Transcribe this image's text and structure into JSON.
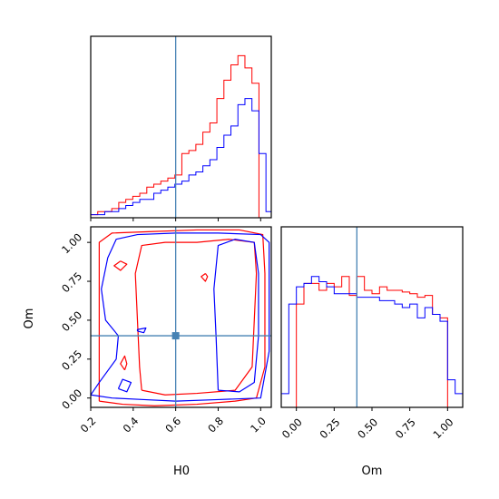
{
  "chart_data": [
    {
      "type": "histogram",
      "panel": "H0 marginal",
      "xlim": [
        0.2,
        1.05
      ],
      "truth": 0.6,
      "colors": {
        "red": "#ff0000",
        "blue": "#0000ff",
        "truth": "#4682b4"
      },
      "bin_edges": [
        0.2,
        0.233,
        0.266,
        0.299,
        0.332,
        0.365,
        0.398,
        0.431,
        0.464,
        0.497,
        0.53,
        0.563,
        0.596,
        0.629,
        0.662,
        0.695,
        0.728,
        0.761,
        0.794,
        0.827,
        0.86,
        0.893,
        0.926,
        0.959,
        0.992,
        1.025,
        1.05
      ],
      "series": [
        {
          "color": "red",
          "values": [
            1,
            2,
            2,
            3,
            5,
            6,
            7,
            8,
            10,
            11,
            12,
            13,
            14,
            21,
            22,
            24,
            28,
            31,
            39,
            45,
            50,
            53,
            49,
            44,
            0,
            0
          ]
        },
        {
          "color": "blue",
          "values": [
            1,
            1,
            2,
            2,
            3,
            4,
            5,
            6,
            6,
            8,
            9,
            10,
            11,
            12,
            14,
            15,
            17,
            19,
            23,
            27,
            30,
            37,
            39,
            35,
            21,
            2
          ]
        }
      ]
    },
    {
      "type": "contour",
      "panel": "H0 vs Om",
      "xlabel": "H0",
      "ylabel": "Om",
      "xlim": [
        0.2,
        1.05
      ],
      "ylim": [
        -0.06,
        1.1
      ],
      "xticks": [
        "0.2",
        "0.4",
        "0.6",
        "0.8",
        "1.0"
      ],
      "yticks": [
        "0.00",
        "0.25",
        "0.50",
        "0.75",
        "1.00"
      ],
      "truth": {
        "x": 0.6,
        "y": 0.4
      },
      "red_contours": [
        [
          [
            0.24,
            -0.02
          ],
          [
            0.35,
            -0.04
          ],
          [
            0.5,
            -0.05
          ],
          [
            0.7,
            -0.04
          ],
          [
            0.88,
            -0.02
          ],
          [
            0.98,
            0.0
          ],
          [
            1.02,
            0.2
          ],
          [
            1.02,
            0.5
          ],
          [
            1.02,
            0.8
          ],
          [
            1.01,
            1.05
          ],
          [
            0.9,
            1.08
          ],
          [
            0.7,
            1.08
          ],
          [
            0.5,
            1.07
          ],
          [
            0.3,
            1.06
          ],
          [
            0.24,
            1.0
          ],
          [
            0.24,
            0.7
          ],
          [
            0.24,
            0.4
          ],
          [
            0.24,
            0.1
          ],
          [
            0.24,
            -0.02
          ]
        ],
        [
          [
            0.44,
            0.05
          ],
          [
            0.55,
            0.02
          ],
          [
            0.7,
            0.03
          ],
          [
            0.88,
            0.05
          ],
          [
            0.96,
            0.2
          ],
          [
            0.97,
            0.5
          ],
          [
            0.98,
            0.8
          ],
          [
            0.97,
            1.0
          ],
          [
            0.85,
            1.02
          ],
          [
            0.7,
            1.0
          ],
          [
            0.55,
            1.0
          ],
          [
            0.44,
            0.98
          ],
          [
            0.41,
            0.8
          ],
          [
            0.42,
            0.5
          ],
          [
            0.43,
            0.2
          ],
          [
            0.44,
            0.05
          ]
        ],
        [
          [
            0.34,
            0.88
          ],
          [
            0.31,
            0.85
          ],
          [
            0.34,
            0.82
          ],
          [
            0.37,
            0.86
          ],
          [
            0.34,
            0.88
          ]
        ],
        [
          [
            0.36,
            0.18
          ],
          [
            0.34,
            0.22
          ],
          [
            0.36,
            0.27
          ],
          [
            0.37,
            0.22
          ],
          [
            0.36,
            0.18
          ]
        ],
        [
          [
            0.74,
            0.8
          ],
          [
            0.72,
            0.78
          ],
          [
            0.74,
            0.75
          ],
          [
            0.75,
            0.78
          ],
          [
            0.74,
            0.8
          ]
        ]
      ],
      "blue_contours": [
        [
          [
            0.2,
            0.02
          ],
          [
            0.3,
            0.0
          ],
          [
            0.45,
            -0.01
          ],
          [
            0.6,
            -0.02
          ],
          [
            0.8,
            -0.01
          ],
          [
            1.0,
            0.0
          ],
          [
            1.04,
            0.3
          ],
          [
            1.04,
            0.7
          ],
          [
            1.04,
            1.0
          ],
          [
            1.0,
            1.05
          ],
          [
            0.8,
            1.06
          ],
          [
            0.6,
            1.06
          ],
          [
            0.42,
            1.05
          ],
          [
            0.32,
            1.02
          ],
          [
            0.28,
            0.9
          ],
          [
            0.25,
            0.7
          ],
          [
            0.27,
            0.5
          ],
          [
            0.33,
            0.4
          ],
          [
            0.32,
            0.25
          ],
          [
            0.24,
            0.1
          ],
          [
            0.2,
            0.02
          ]
        ],
        [
          [
            0.8,
            0.05
          ],
          [
            0.9,
            0.04
          ],
          [
            0.97,
            0.1
          ],
          [
            0.99,
            0.4
          ],
          [
            0.99,
            0.8
          ],
          [
            0.97,
            1.0
          ],
          [
            0.88,
            1.02
          ],
          [
            0.8,
            0.98
          ],
          [
            0.78,
            0.7
          ],
          [
            0.79,
            0.4
          ],
          [
            0.8,
            0.05
          ]
        ],
        [
          [
            0.33,
            0.06
          ],
          [
            0.37,
            0.04
          ],
          [
            0.39,
            0.1
          ],
          [
            0.35,
            0.12
          ],
          [
            0.33,
            0.06
          ]
        ],
        [
          [
            0.42,
            0.43
          ],
          [
            0.45,
            0.42
          ],
          [
            0.46,
            0.45
          ],
          [
            0.42,
            0.44
          ],
          [
            0.42,
            0.43
          ]
        ]
      ]
    },
    {
      "type": "histogram",
      "panel": "Om marginal",
      "xlabel": "Om",
      "xlim": [
        -0.1,
        1.1
      ],
      "xticks": [
        "0.00",
        "0.25",
        "0.50",
        "0.75",
        "1.00"
      ],
      "truth": 0.4,
      "colors": {
        "red": "#ff0000",
        "blue": "#0000ff",
        "truth": "#4682b4"
      },
      "bin_edges": [
        -0.1,
        -0.05,
        0.0,
        0.05,
        0.1,
        0.15,
        0.2,
        0.25,
        0.3,
        0.35,
        0.4,
        0.45,
        0.5,
        0.55,
        0.6,
        0.65,
        0.7,
        0.75,
        0.8,
        0.85,
        0.9,
        0.95,
        1.0,
        1.05,
        1.1
      ],
      "series": [
        {
          "color": "red",
          "values": [
            0,
            0,
            60,
            72,
            72,
            68,
            72,
            70,
            76,
            65,
            76,
            68,
            66,
            70,
            68,
            68,
            67,
            66,
            64,
            65,
            54,
            52,
            0,
            0
          ]
        },
        {
          "color": "blue",
          "values": [
            8,
            60,
            70,
            72,
            76,
            73,
            70,
            66,
            66,
            66,
            64,
            64,
            64,
            62,
            62,
            60,
            58,
            60,
            52,
            58,
            54,
            50,
            16,
            8
          ]
        }
      ]
    }
  ]
}
